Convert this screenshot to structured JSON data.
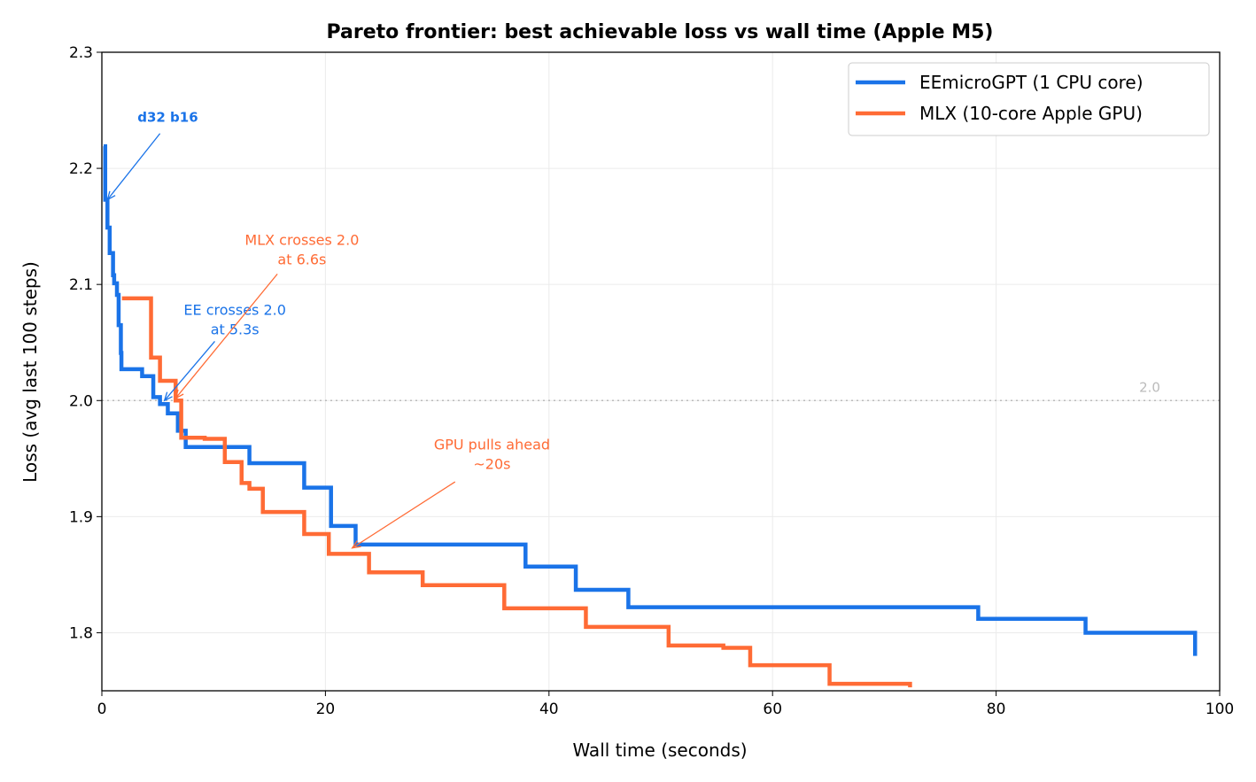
{
  "chart_data": {
    "type": "line",
    "step": "post",
    "title": "Pareto frontier: best achievable loss vs wall time (Apple M5)",
    "xlabel": "Wall time (seconds)",
    "ylabel": "Loss (avg last 100 steps)",
    "xlim": [
      0,
      100
    ],
    "ylim": [
      1.75,
      2.3
    ],
    "xticks": [
      "0",
      "20",
      "40",
      "60",
      "80",
      "100"
    ],
    "yticks": [
      "1.8",
      "1.9",
      "2.0",
      "2.1",
      "2.2",
      "2.3"
    ],
    "grid": true,
    "legend_position": "top-right",
    "reference_line": {
      "y": 2.0,
      "label": "2.0",
      "color": "#bbbbbb"
    },
    "series": [
      {
        "name": "EEmicroGPT (1 CPU core)",
        "color": "#1a73e8",
        "x": [
          0.16,
          0.3,
          0.5,
          0.7,
          1.0,
          1.1,
          1.35,
          1.5,
          1.7,
          1.75,
          3.6,
          4.6,
          5.2,
          5.9,
          6.8,
          7.5,
          13.2,
          18.1,
          20.5,
          22.7,
          37.9,
          42.4,
          47.1,
          78.4,
          88.0,
          97.8
        ],
        "y": [
          2.219,
          2.173,
          2.149,
          2.127,
          2.108,
          2.101,
          2.091,
          2.065,
          2.041,
          2.027,
          2.021,
          2.003,
          1.997,
          1.989,
          1.974,
          1.96,
          1.946,
          1.925,
          1.892,
          1.876,
          1.857,
          1.837,
          1.822,
          1.812,
          1.8,
          1.78
        ]
      },
      {
        "name": "MLX (10-core Apple GPU)",
        "color": "#ff6b35",
        "x": [
          1.8,
          4.4,
          5.2,
          6.6,
          7.1,
          9.2,
          11.0,
          12.5,
          13.2,
          14.4,
          18.1,
          20.3,
          23.9,
          28.7,
          36.0,
          43.3,
          50.7,
          55.6,
          58.0,
          65.1,
          72.3
        ],
        "y": [
          2.088,
          2.037,
          2.017,
          2.0,
          1.968,
          1.967,
          1.947,
          1.929,
          1.924,
          1.904,
          1.885,
          1.868,
          1.852,
          1.841,
          1.821,
          1.805,
          1.789,
          1.787,
          1.772,
          1.756,
          1.753
        ]
      }
    ],
    "annotations": [
      {
        "text": [
          "d32 b16"
        ],
        "color": "#1a73e8",
        "bold": true,
        "text_at": [
          5.9,
          2.24
        ],
        "arrow_from": [
          5.2,
          2.23
        ],
        "arrow_to": [
          0.5,
          2.173
        ]
      },
      {
        "text": [
          "EE crosses 2.0",
          "at 5.3s"
        ],
        "color": "#1a73e8",
        "bold": false,
        "text_at": [
          11.9,
          2.074
        ],
        "arrow_from": [
          10.1,
          2.051
        ],
        "arrow_to": [
          5.6,
          2.0
        ]
      },
      {
        "text": [
          "MLX crosses 2.0",
          "at 6.6s"
        ],
        "color": "#ff6b35",
        "bold": false,
        "text_at": [
          17.9,
          2.134
        ],
        "arrow_from": [
          15.7,
          2.109
        ],
        "arrow_to": [
          6.6,
          2.002
        ]
      },
      {
        "text": [
          "GPU pulls ahead",
          "~20s"
        ],
        "color": "#ff6b35",
        "bold": false,
        "text_at": [
          34.9,
          1.958
        ],
        "arrow_from": [
          31.6,
          1.93
        ],
        "arrow_to": [
          22.4,
          1.873
        ]
      }
    ]
  }
}
